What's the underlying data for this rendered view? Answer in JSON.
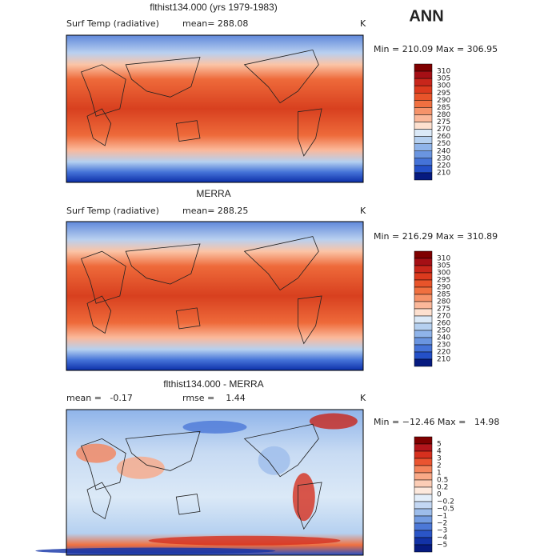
{
  "header": {
    "season": "ANN"
  },
  "panels": [
    {
      "title": "flthist134.000 (yrs 1979-1983)",
      "labels": [
        "Surf Temp (radiative)",
        "mean= 288.08",
        "K"
      ],
      "minmax": "Min = 210.09 Max = 306.95",
      "map": "temp",
      "colorbar": {
        "labels": [
          "310",
          "305",
          "300",
          "295",
          "290",
          "285",
          "280",
          "275",
          "270",
          "260",
          "250",
          "240",
          "230",
          "220",
          "210"
        ],
        "colors": [
          "#7f0000",
          "#a50f15",
          "#c8261b",
          "#dc3a1e",
          "#e8542a",
          "#f07040",
          "#f6936a",
          "#fbb89a",
          "#fde0cf",
          "#dbe9f7",
          "#b5d0f0",
          "#8fb4ea",
          "#6a95e0",
          "#4573d8",
          "#2450c8",
          "#061a80"
        ]
      }
    },
    {
      "title": "MERRA",
      "labels": [
        "Surf Temp (radiative)",
        "mean= 288.25",
        "K"
      ],
      "minmax": "Min = 216.29 Max = 310.89",
      "map": "temp",
      "colorbar": {
        "labels": [
          "310",
          "305",
          "300",
          "295",
          "290",
          "285",
          "280",
          "275",
          "270",
          "260",
          "250",
          "240",
          "230",
          "220",
          "210"
        ],
        "colors": [
          "#7f0000",
          "#a50f15",
          "#c8261b",
          "#dc3a1e",
          "#e8542a",
          "#f07040",
          "#f6936a",
          "#fbb89a",
          "#fde0cf",
          "#dbe9f7",
          "#b5d0f0",
          "#8fb4ea",
          "#6a95e0",
          "#4573d8",
          "#2450c8",
          "#061a80"
        ]
      }
    },
    {
      "title": "flthist134.000 - MERRA",
      "labels": [
        "mean =   -0.17",
        "rmse =    1.44",
        "K"
      ],
      "minmax": "Min = −12.46 Max =   14.98",
      "map": "diff",
      "colorbar": {
        "labels": [
          "5",
          "4",
          "3",
          "2",
          "1",
          "0.5",
          "0.2",
          "0",
          "−0.2",
          "−0.5",
          "−1",
          "−2",
          "−3",
          "−4",
          "−5"
        ],
        "colors": [
          "#7f0000",
          "#b3151b",
          "#d6301e",
          "#ea5430",
          "#f4845c",
          "#f9a987",
          "#fccdb6",
          "#fde9dd",
          "#e3eefa",
          "#c3d7f3",
          "#9dbdeb",
          "#739ce2",
          "#4c78d7",
          "#2a55c7",
          "#1232a6",
          "#061a80"
        ]
      }
    }
  ]
}
